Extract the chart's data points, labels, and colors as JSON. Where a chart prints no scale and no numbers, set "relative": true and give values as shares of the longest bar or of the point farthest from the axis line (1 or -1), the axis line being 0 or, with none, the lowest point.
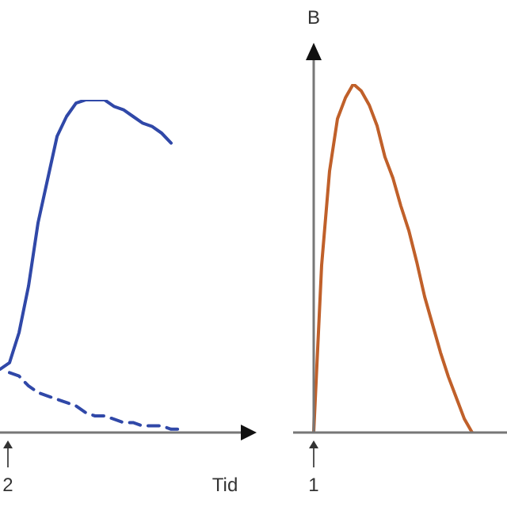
{
  "chart_data": [
    {
      "type": "line",
      "relative": true,
      "xlabel": "Tid",
      "annotations": [
        "2"
      ],
      "marker": "none",
      "legend": false,
      "categories": [
        null,
        null,
        null,
        null,
        null,
        null,
        null,
        null,
        null,
        null,
        null,
        null,
        null,
        null,
        null,
        null,
        null,
        null,
        null,
        null,
        null,
        null,
        null,
        null,
        null,
        null
      ],
      "series": [
        {
          "color": "#3048a8",
          "line_style": "solid",
          "values": [
            0.19,
            0.21,
            0.3,
            0.44,
            0.63,
            0.76,
            0.89,
            0.95,
            0.99,
            1,
            1,
            1,
            0.98,
            0.97,
            0.95,
            0.93,
            0.92,
            0.9,
            0.87,
            null,
            null,
            null,
            null,
            null,
            null,
            null
          ]
        },
        {
          "color": "#3048a8",
          "line_style": "dashed",
          "values": [
            null,
            0.18,
            0.17,
            0.14,
            0.12,
            0.11,
            0.1,
            0.09,
            0.08,
            0.06,
            0.05,
            0.05,
            0.04,
            0.03,
            0.03,
            0.02,
            0.02,
            0.02,
            0.01,
            0.01,
            null,
            null,
            null,
            null,
            null,
            null
          ]
        }
      ]
    },
    {
      "type": "line",
      "relative": true,
      "ylabel": "B",
      "annotations": [
        "1"
      ],
      "marker": "none",
      "legend": false,
      "categories": [
        null,
        null,
        null,
        null,
        null,
        null,
        null,
        null,
        null,
        null,
        null,
        null,
        null,
        null,
        null,
        null,
        null,
        null,
        null,
        null,
        null,
        null,
        null,
        null,
        null
      ],
      "series": [
        {
          "color": "#c0602a",
          "line_style": "solid",
          "values": [
            0,
            0.48,
            0.75,
            0.9,
            0.96,
            1,
            0.98,
            0.94,
            0.88,
            0.79,
            0.73,
            0.65,
            0.58,
            0.49,
            0.39,
            0.31,
            0.23,
            0.16,
            0.1,
            0.04,
            0,
            null,
            null,
            null,
            null
          ]
        }
      ]
    }
  ]
}
